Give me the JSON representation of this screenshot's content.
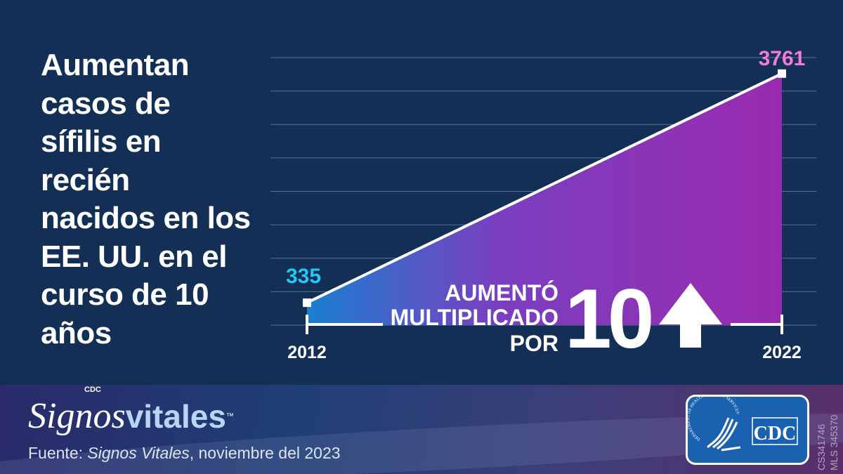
{
  "title": "Aumentan casos de sífilis en recién nacidos en los EE. UU. en el curso de 10 años",
  "chart_data": {
    "type": "area",
    "x": [
      2012,
      2022
    ],
    "values": [
      335,
      3761
    ],
    "data_labels": [
      "335",
      "3761"
    ],
    "tick_labels": [
      "2012",
      "2022"
    ],
    "ylim": [
      0,
      4000
    ],
    "grid": true,
    "annotation": {
      "line1": "AUMENTÓ",
      "line2": "MULTIPLICADO",
      "line3": "POR",
      "big": "10"
    },
    "colors": {
      "start": "#1a7fd0",
      "end": "#9a2bb0",
      "start_label": "#22c8f0",
      "end_label": "#f07ae0",
      "line": "#ffffff"
    }
  },
  "footer": {
    "cdc_small": "CDC",
    "logo_part1": "Signos",
    "logo_part2": "vitales",
    "tm": "™",
    "source_prefix": "Fuente:",
    "source_italic": "Signos Vitales",
    "source_rest": ", noviembre del  2023",
    "codes": [
      "CS341746",
      "MLS 345370"
    ],
    "hhs_text": "DEPARTMENT OF HEALTH & HUMAN SERVICES·USA",
    "cdc_logo": "CDC"
  }
}
